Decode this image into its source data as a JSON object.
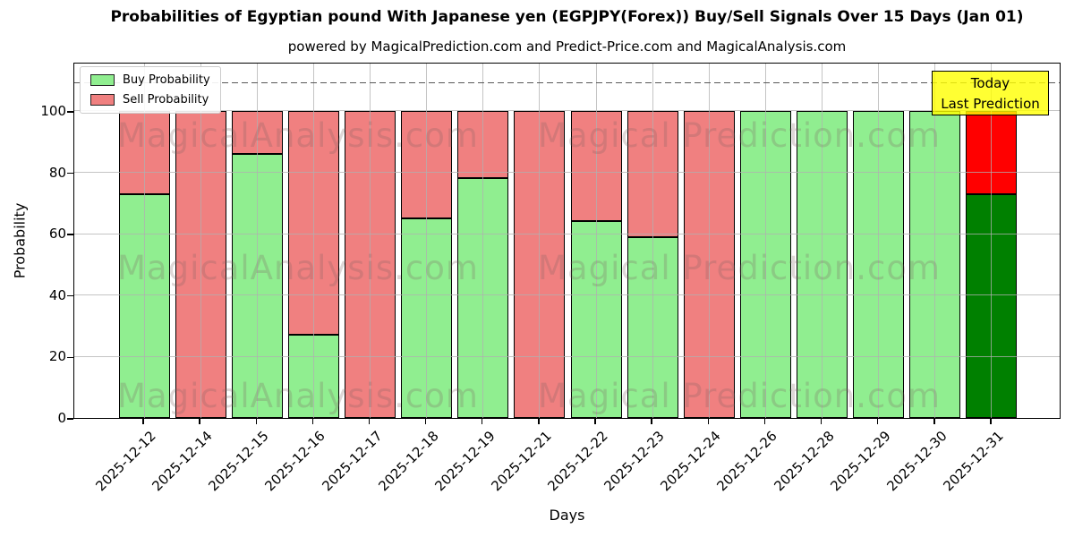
{
  "chart_data": {
    "type": "bar",
    "subtype": "stacked",
    "title": "Probabilities of Egyptian pound With Japanese yen (EGPJPY(Forex)) Buy/Sell Signals Over 15 Days (Jan 01)",
    "subtitle": "powered by MagicalPrediction.com and Predict-Price.com and MagicalAnalysis.com",
    "xlabel": "Days",
    "ylabel": "Probability",
    "ylim": [
      0,
      116
    ],
    "yticks": [
      0,
      20,
      40,
      60,
      80,
      100
    ],
    "grid": true,
    "legend_position": "upper left",
    "dashed_line_y": 110,
    "categories": [
      "2025-12-12",
      "2025-12-14",
      "2025-12-15",
      "2025-12-16",
      "2025-12-17",
      "2025-12-18",
      "2025-12-19",
      "2025-12-21",
      "2025-12-22",
      "2025-12-23",
      "2025-12-24",
      "2025-12-26",
      "2025-12-28",
      "2025-12-29",
      "2025-12-30",
      "2025-12-31"
    ],
    "series": [
      {
        "name": "Buy Probability",
        "color": "#90EE90",
        "last_bar_color": "#008000",
        "values": [
          73,
          0,
          86,
          27,
          0,
          65,
          78,
          0,
          64,
          59,
          0,
          100,
          100,
          100,
          100,
          73
        ]
      },
      {
        "name": "Sell Probability",
        "color": "#F08080",
        "last_bar_color": "#FF0000",
        "values": [
          27,
          100,
          14,
          73,
          100,
          35,
          22,
          100,
          36,
          41,
          100,
          0,
          0,
          0,
          0,
          27
        ]
      }
    ],
    "bar_edge_color": "#000000",
    "annotation": {
      "line1": "Today",
      "line2": "Last Prediction",
      "bg_color": "#FFFF00"
    },
    "watermark": {
      "left_text": "MagicalAnalysis.com",
      "right_text": "Magical Prediction.com"
    }
  }
}
